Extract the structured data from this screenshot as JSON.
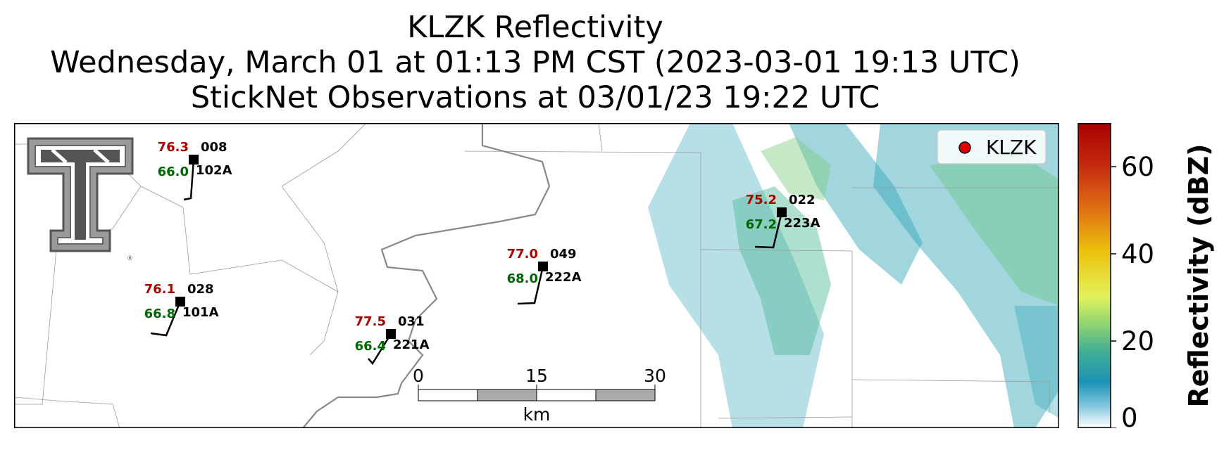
{
  "title": {
    "line1": "KLZK Reflectivity",
    "line2": "Wednesday, March 01 at 01:13 PM CST (2023-03-01 19:13 UTC)",
    "line3": "StickNet Observations at 03/01/23 19:22 UTC"
  },
  "legend": {
    "label": "KLZK",
    "marker_color": "#dd0000"
  },
  "colors": {
    "temperature": "#aa0000",
    "dewpoint": "#006600",
    "station": "#000000"
  },
  "stations": [
    {
      "id": "008",
      "probe": "102A",
      "temp": "76.3",
      "dew": "66.0"
    },
    {
      "id": "028",
      "probe": "101A",
      "temp": "76.1",
      "dew": "66.8"
    },
    {
      "id": "031",
      "probe": "221A",
      "temp": "77.5",
      "dew": "66.4"
    },
    {
      "id": "049",
      "probe": "222A",
      "temp": "77.0",
      "dew": "68.0"
    },
    {
      "id": "022",
      "probe": "223A",
      "temp": "75.2",
      "dew": "67.2"
    }
  ],
  "scalebar": {
    "labels": [
      "0",
      "15",
      "30"
    ],
    "unit": "km"
  },
  "colorbar": {
    "label": "Reflectivity (dBZ)",
    "ticks": [
      "0",
      "20",
      "40",
      "60"
    ],
    "range": [
      0,
      70
    ]
  }
}
